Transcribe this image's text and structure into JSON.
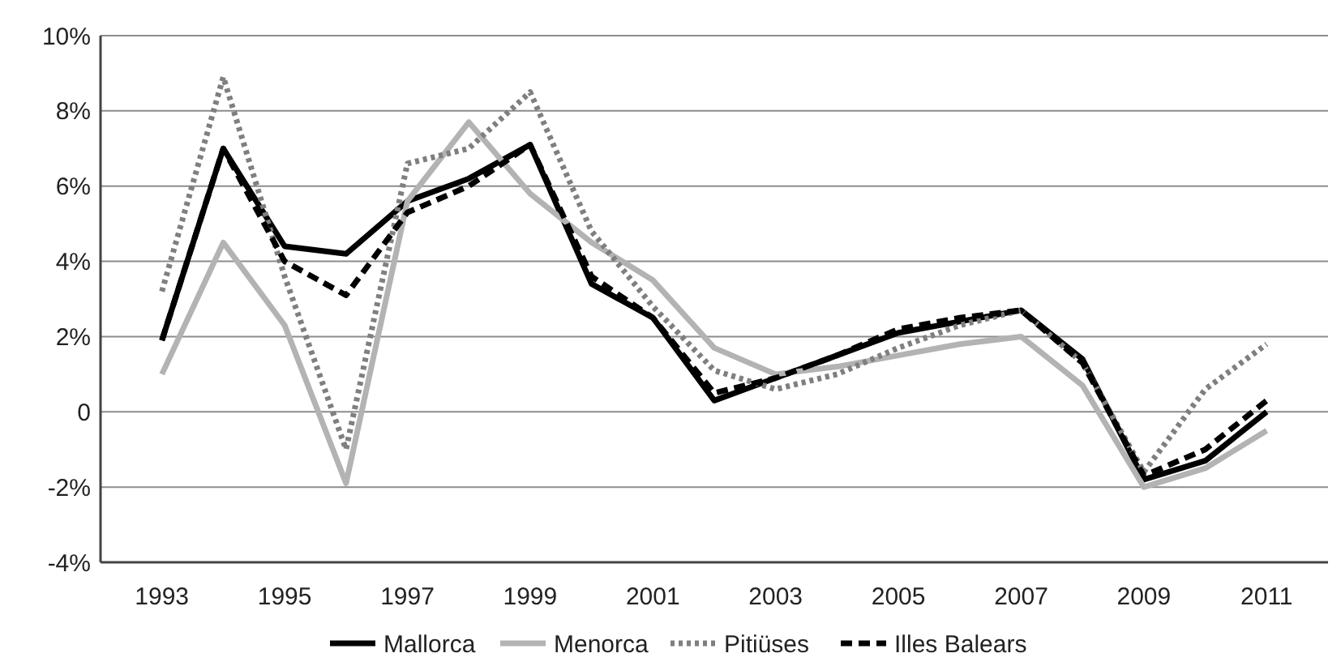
{
  "chart_data": {
    "type": "line",
    "x": [
      1993,
      1994,
      1995,
      1996,
      1997,
      1998,
      1999,
      2000,
      2001,
      2002,
      2003,
      2004,
      2005,
      2006,
      2007,
      2008,
      2009,
      2010,
      2011
    ],
    "xlim": [
      1992,
      2012
    ],
    "xticks": [
      1993,
      1995,
      1997,
      1999,
      2001,
      2003,
      2005,
      2007,
      2009,
      2011
    ],
    "ylim": [
      -4,
      10
    ],
    "yticks": [
      {
        "value": -4,
        "label": "-4%"
      },
      {
        "value": -2,
        "label": "-2%"
      },
      0,
      {
        "value": 2,
        "label": "2%"
      },
      {
        "value": 4,
        "label": "4%"
      },
      {
        "value": 6,
        "label": "6%"
      },
      {
        "value": 8,
        "label": "8%"
      },
      {
        "value": 10,
        "label": "10%"
      }
    ],
    "grid": "y",
    "legend": "bottom",
    "series": [
      {
        "name": "Mallorca",
        "color": "#000000",
        "line_style": "solid",
        "values": [
          1.9,
          7.0,
          4.4,
          4.2,
          5.6,
          6.2,
          7.1,
          3.4,
          2.5,
          0.3,
          0.9,
          1.5,
          2.1,
          2.4,
          2.7,
          1.4,
          -1.8,
          -1.3,
          0.0
        ]
      },
      {
        "name": "Menorca",
        "color": "#b3b3b3",
        "line_style": "solid",
        "values": [
          1.0,
          4.5,
          2.3,
          -1.9,
          5.6,
          7.7,
          5.8,
          4.5,
          3.5,
          1.7,
          1.0,
          1.2,
          1.5,
          1.8,
          2.0,
          0.7,
          -2.0,
          -1.5,
          -0.5
        ]
      },
      {
        "name": "Pitiüses",
        "color": "#7f7f7f",
        "line_style": "dotted",
        "values": [
          3.2,
          8.9,
          3.6,
          -1.0,
          6.6,
          7.0,
          8.5,
          4.8,
          2.8,
          1.1,
          0.6,
          1.0,
          1.7,
          2.3,
          2.7,
          1.3,
          -1.6,
          0.6,
          1.8
        ]
      },
      {
        "name": "Illes Balears",
        "color": "#000000",
        "line_style": "dashed",
        "values": [
          1.9,
          7.0,
          4.0,
          3.1,
          5.3,
          6.0,
          7.1,
          3.6,
          2.5,
          0.5,
          0.9,
          1.5,
          2.2,
          2.5,
          2.7,
          1.3,
          -1.7,
          -1.0,
          0.3
        ]
      }
    ]
  }
}
